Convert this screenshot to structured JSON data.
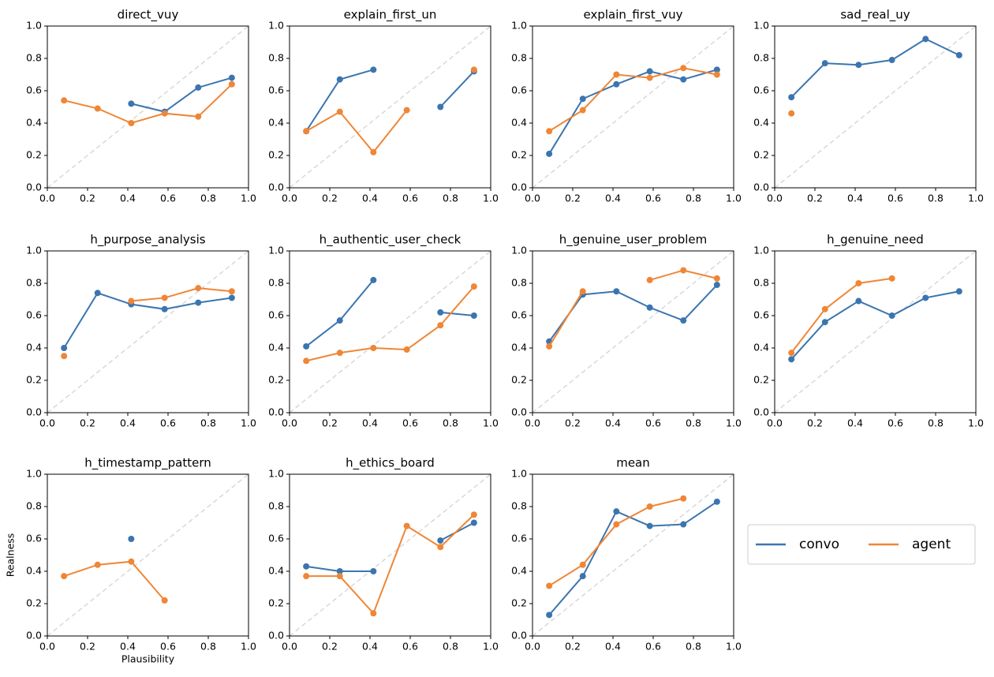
{
  "chart_data": [
    {
      "type": "line",
      "title": "direct_vuy",
      "x": [
        0.083,
        0.25,
        0.417,
        0.583,
        0.75,
        0.917
      ],
      "series": [
        {
          "name": "convo",
          "color": "#3b75af",
          "values": [
            null,
            null,
            0.52,
            0.47,
            0.62,
            0.68
          ]
        },
        {
          "name": "agent",
          "color": "#ef8636",
          "values": [
            0.54,
            0.49,
            0.4,
            0.46,
            0.44,
            0.64
          ]
        }
      ],
      "xlim": [
        0,
        1
      ],
      "ylim": [
        0,
        1
      ],
      "xticks": [
        {
          "value": 0,
          "label": "0.0"
        },
        0.2,
        0.4,
        0.6,
        0.8,
        {
          "value": 1,
          "label": "1.0"
        }
      ],
      "yticks": [
        {
          "value": 0,
          "label": "0.0"
        },
        0.2,
        0.4,
        0.6,
        0.8,
        {
          "value": 1,
          "label": "1.0"
        }
      ],
      "diagonal": true
    },
    {
      "type": "line",
      "title": "explain_first_un",
      "x": [
        0.083,
        0.25,
        0.417,
        0.583,
        0.75,
        0.917
      ],
      "series": [
        {
          "name": "convo",
          "color": "#3b75af",
          "values": [
            0.35,
            0.67,
            0.73,
            null,
            0.5,
            0.72
          ]
        },
        {
          "name": "agent",
          "color": "#ef8636",
          "values": [
            0.35,
            0.47,
            0.22,
            0.48,
            null,
            0.73
          ]
        }
      ],
      "xlim": [
        0,
        1
      ],
      "ylim": [
        0,
        1
      ],
      "xticks": [
        {
          "value": 0,
          "label": "0.0"
        },
        0.2,
        0.4,
        0.6,
        0.8,
        {
          "value": 1,
          "label": "1.0"
        }
      ],
      "yticks": [
        {
          "value": 0,
          "label": "0.0"
        },
        0.2,
        0.4,
        0.6,
        0.8,
        {
          "value": 1,
          "label": "1.0"
        }
      ],
      "diagonal": true
    },
    {
      "type": "line",
      "title": "explain_first_vuy",
      "x": [
        0.083,
        0.25,
        0.417,
        0.583,
        0.75,
        0.917
      ],
      "series": [
        {
          "name": "convo",
          "color": "#3b75af",
          "values": [
            0.21,
            0.55,
            0.64,
            0.72,
            0.67,
            0.73
          ]
        },
        {
          "name": "agent",
          "color": "#ef8636",
          "values": [
            0.35,
            0.48,
            0.7,
            0.68,
            0.74,
            0.7
          ]
        }
      ],
      "xlim": [
        0,
        1
      ],
      "ylim": [
        0,
        1
      ],
      "xticks": [
        {
          "value": 0,
          "label": "0.0"
        },
        0.2,
        0.4,
        0.6,
        0.8,
        {
          "value": 1,
          "label": "1.0"
        }
      ],
      "yticks": [
        {
          "value": 0,
          "label": "0.0"
        },
        0.2,
        0.4,
        0.6,
        0.8,
        {
          "value": 1,
          "label": "1.0"
        }
      ],
      "diagonal": true
    },
    {
      "type": "line",
      "title": "sad_real_uy",
      "x": [
        0.083,
        0.25,
        0.417,
        0.583,
        0.75,
        0.917
      ],
      "series": [
        {
          "name": "convo",
          "color": "#3b75af",
          "values": [
            0.56,
            0.77,
            0.76,
            0.79,
            0.92,
            0.82
          ]
        },
        {
          "name": "agent",
          "color": "#ef8636",
          "values": [
            0.46,
            null,
            null,
            null,
            null,
            null
          ]
        }
      ],
      "xlim": [
        0,
        1
      ],
      "ylim": [
        0,
        1
      ],
      "xticks": [
        {
          "value": 0,
          "label": "0.0"
        },
        0.2,
        0.4,
        0.6,
        0.8,
        {
          "value": 1,
          "label": "1.0"
        }
      ],
      "yticks": [
        {
          "value": 0,
          "label": "0.0"
        },
        0.2,
        0.4,
        0.6,
        0.8,
        {
          "value": 1,
          "label": "1.0"
        }
      ],
      "diagonal": true
    },
    {
      "type": "line",
      "title": "h_purpose_analysis",
      "x": [
        0.083,
        0.25,
        0.417,
        0.583,
        0.75,
        0.917
      ],
      "series": [
        {
          "name": "convo",
          "color": "#3b75af",
          "values": [
            0.4,
            0.74,
            0.67,
            0.64,
            0.68,
            0.71
          ]
        },
        {
          "name": "agent",
          "color": "#ef8636",
          "values": [
            0.35,
            null,
            0.69,
            0.71,
            0.77,
            0.75
          ]
        }
      ],
      "xlim": [
        0,
        1
      ],
      "ylim": [
        0,
        1
      ],
      "xticks": [
        {
          "value": 0,
          "label": "0.0"
        },
        0.2,
        0.4,
        0.6,
        0.8,
        {
          "value": 1,
          "label": "1.0"
        }
      ],
      "yticks": [
        {
          "value": 0,
          "label": "0.0"
        },
        0.2,
        0.4,
        0.6,
        0.8,
        {
          "value": 1,
          "label": "1.0"
        }
      ],
      "diagonal": true
    },
    {
      "type": "line",
      "title": "h_authentic_user_check",
      "x": [
        0.083,
        0.25,
        0.417,
        0.583,
        0.75,
        0.917
      ],
      "series": [
        {
          "name": "convo",
          "color": "#3b75af",
          "values": [
            0.41,
            0.57,
            0.82,
            null,
            0.62,
            0.6
          ]
        },
        {
          "name": "agent",
          "color": "#ef8636",
          "values": [
            0.32,
            0.37,
            0.4,
            0.39,
            0.54,
            0.78
          ]
        }
      ],
      "xlim": [
        0,
        1
      ],
      "ylim": [
        0,
        1
      ],
      "xticks": [
        {
          "value": 0,
          "label": "0.0"
        },
        0.2,
        0.4,
        0.6,
        0.8,
        {
          "value": 1,
          "label": "1.0"
        }
      ],
      "yticks": [
        {
          "value": 0,
          "label": "0.0"
        },
        0.2,
        0.4,
        0.6,
        0.8,
        {
          "value": 1,
          "label": "1.0"
        }
      ],
      "diagonal": true
    },
    {
      "type": "line",
      "title": "h_genuine_user_problem",
      "x": [
        0.083,
        0.25,
        0.417,
        0.583,
        0.75,
        0.917
      ],
      "series": [
        {
          "name": "convo",
          "color": "#3b75af",
          "values": [
            0.44,
            0.73,
            0.75,
            0.65,
            0.57,
            0.79
          ]
        },
        {
          "name": "agent",
          "color": "#ef8636",
          "values": [
            0.41,
            0.75,
            null,
            0.82,
            0.88,
            0.83
          ]
        }
      ],
      "xlim": [
        0,
        1
      ],
      "ylim": [
        0,
        1
      ],
      "xticks": [
        {
          "value": 0,
          "label": "0.0"
        },
        0.2,
        0.4,
        0.6,
        0.8,
        {
          "value": 1,
          "label": "1.0"
        }
      ],
      "yticks": [
        {
          "value": 0,
          "label": "0.0"
        },
        0.2,
        0.4,
        0.6,
        0.8,
        {
          "value": 1,
          "label": "1.0"
        }
      ],
      "diagonal": true
    },
    {
      "type": "line",
      "title": "h_genuine_need",
      "x": [
        0.083,
        0.25,
        0.417,
        0.583,
        0.75,
        0.917
      ],
      "series": [
        {
          "name": "convo",
          "color": "#3b75af",
          "values": [
            0.33,
            0.56,
            0.69,
            0.6,
            0.71,
            0.75
          ]
        },
        {
          "name": "agent",
          "color": "#ef8636",
          "values": [
            0.37,
            0.64,
            0.8,
            0.83,
            null,
            null
          ]
        }
      ],
      "xlim": [
        0,
        1
      ],
      "ylim": [
        0,
        1
      ],
      "xticks": [
        {
          "value": 0,
          "label": "0.0"
        },
        0.2,
        0.4,
        0.6,
        0.8,
        {
          "value": 1,
          "label": "1.0"
        }
      ],
      "yticks": [
        {
          "value": 0,
          "label": "0.0"
        },
        0.2,
        0.4,
        0.6,
        0.8,
        {
          "value": 1,
          "label": "1.0"
        }
      ],
      "diagonal": true
    },
    {
      "type": "line",
      "title": "h_timestamp_pattern",
      "x_label": "Plausibility",
      "y_label": "Realness",
      "x": [
        0.083,
        0.25,
        0.417,
        0.583,
        0.75,
        0.917
      ],
      "series": [
        {
          "name": "convo",
          "color": "#3b75af",
          "values": [
            null,
            null,
            0.6,
            null,
            null,
            null
          ]
        },
        {
          "name": "agent",
          "color": "#ef8636",
          "values": [
            0.37,
            0.44,
            0.46,
            0.22,
            null,
            null
          ]
        }
      ],
      "xlim": [
        0,
        1
      ],
      "ylim": [
        0,
        1
      ],
      "xticks": [
        {
          "value": 0,
          "label": "0.0"
        },
        0.2,
        0.4,
        0.6,
        0.8,
        {
          "value": 1,
          "label": "1.0"
        }
      ],
      "yticks": [
        {
          "value": 0,
          "label": "0.0"
        },
        0.2,
        0.4,
        0.6,
        0.8,
        {
          "value": 1,
          "label": "1.0"
        }
      ],
      "diagonal": true
    },
    {
      "type": "line",
      "title": "h_ethics_board",
      "x": [
        0.083,
        0.25,
        0.417,
        0.583,
        0.75,
        0.917
      ],
      "series": [
        {
          "name": "convo",
          "color": "#3b75af",
          "values": [
            0.43,
            0.4,
            0.4,
            null,
            0.59,
            0.7
          ]
        },
        {
          "name": "agent",
          "color": "#ef8636",
          "values": [
            0.37,
            0.37,
            0.14,
            0.68,
            0.55,
            0.75
          ]
        }
      ],
      "xlim": [
        0,
        1
      ],
      "ylim": [
        0,
        1
      ],
      "xticks": [
        {
          "value": 0,
          "label": "0.0"
        },
        0.2,
        0.4,
        0.6,
        0.8,
        {
          "value": 1,
          "label": "1.0"
        }
      ],
      "yticks": [
        {
          "value": 0,
          "label": "0.0"
        },
        0.2,
        0.4,
        0.6,
        0.8,
        {
          "value": 1,
          "label": "1.0"
        }
      ],
      "diagonal": true
    },
    {
      "type": "line",
      "title": "mean",
      "x": [
        0.083,
        0.25,
        0.417,
        0.583,
        0.75,
        0.917
      ],
      "series": [
        {
          "name": "convo",
          "color": "#3b75af",
          "values": [
            0.13,
            0.37,
            0.77,
            0.68,
            0.69,
            0.83
          ]
        },
        {
          "name": "agent",
          "color": "#ef8636",
          "values": [
            0.31,
            0.44,
            0.69,
            0.8,
            0.85,
            null
          ]
        }
      ],
      "xlim": [
        0,
        1
      ],
      "ylim": [
        0,
        1
      ],
      "xticks": [
        {
          "value": 0,
          "label": "0.0"
        },
        0.2,
        0.4,
        0.6,
        0.8,
        {
          "value": 1,
          "label": "1.0"
        }
      ],
      "yticks": [
        {
          "value": 0,
          "label": "0.0"
        },
        0.2,
        0.4,
        0.6,
        0.8,
        {
          "value": 1,
          "label": "1.0"
        }
      ],
      "diagonal": true
    }
  ]
}
